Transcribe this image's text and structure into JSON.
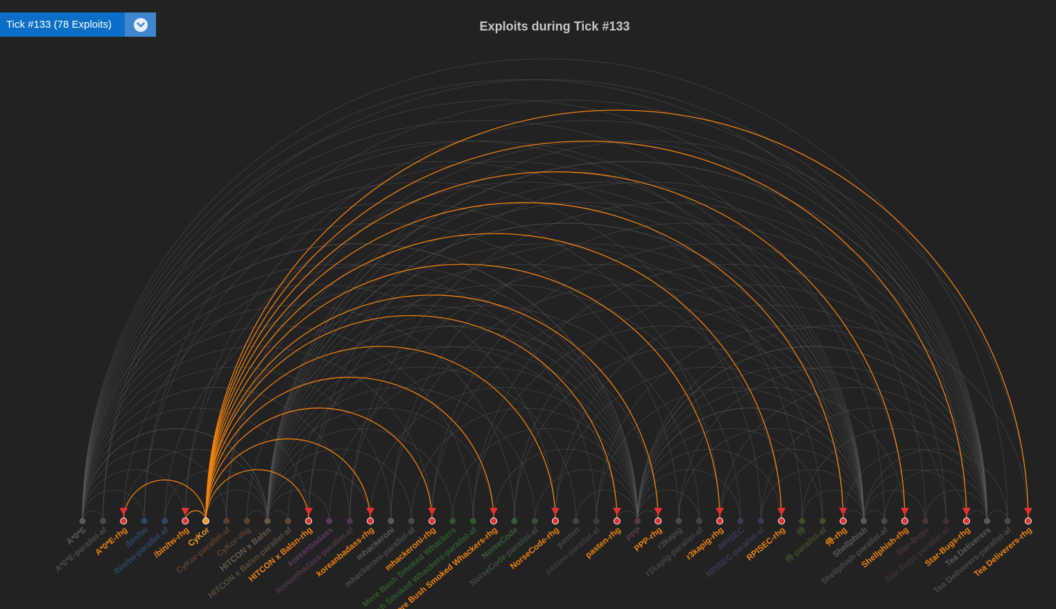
{
  "selector": {
    "label": "Tick #133 (78 Exploits)",
    "caret_icon": "chevron-down-icon"
  },
  "chart_data": {
    "type": "arc-diagram",
    "title": "Exploits during Tick #133",
    "highlighted_attacker": "CyKor",
    "colors": {
      "background": "#222222",
      "exploit_arc": "#f0820f",
      "other_arc": "#5a5a5a",
      "target_marker": "#e03030",
      "attacker_node": "#f39a22",
      "idle_node": "#444444"
    },
    "nodes": [
      {
        "label": "A*0*E",
        "state": "idle",
        "color": "#5a5a5a"
      },
      {
        "label": "A*0*E-parallel-af",
        "state": "idle",
        "color": "#4a4a4a"
      },
      {
        "label": "A*0*E-rhg",
        "state": "target",
        "color": "#f0820f"
      },
      {
        "label": "/bin/tw",
        "state": "idle",
        "color": "#2f4766"
      },
      {
        "label": "/bin/tw-parallel-af",
        "state": "idle",
        "color": "#2f4766"
      },
      {
        "label": "/bin/tw-rhg",
        "state": "target",
        "color": "#f0820f"
      },
      {
        "label": "CyKor",
        "state": "attacker",
        "color": "#f39a22"
      },
      {
        "label": "CyKor-parallel-af",
        "state": "idle",
        "color": "#5a4130"
      },
      {
        "label": "CyKor-rhg",
        "state": "idle",
        "color": "#5a4130"
      },
      {
        "label": "HITCON x Balsn",
        "state": "idle",
        "color": "#6a5a4a"
      },
      {
        "label": "HITCON x Balsn-parallel-af",
        "state": "idle",
        "color": "#5a4a3a"
      },
      {
        "label": "HITCON x Balsn-rhg",
        "state": "target",
        "color": "#f0820f"
      },
      {
        "label": "koreanbadass",
        "state": "idle",
        "color": "#5a3a5a"
      },
      {
        "label": "koreanbadass-parallel-af",
        "state": "idle",
        "color": "#4e354e"
      },
      {
        "label": "koreanbadass-rhg",
        "state": "target",
        "color": "#f0820f"
      },
      {
        "label": "mhackeroni",
        "state": "idle",
        "color": "#5a5a5a"
      },
      {
        "label": "mhackeroni-parallel-af",
        "state": "idle",
        "color": "#4a4a4a"
      },
      {
        "label": "mhackeroni-rhg",
        "state": "target",
        "color": "#f0820f"
      },
      {
        "label": "More Bush Smoked Whackers",
        "state": "idle",
        "color": "#2f5a2f"
      },
      {
        "label": "More Bush Smoked Whackers-parallel-af",
        "state": "idle",
        "color": "#2f5a2f"
      },
      {
        "label": "More Bush Smoked Whackers-rhg",
        "state": "target",
        "color": "#f0820f"
      },
      {
        "label": "NorseCode",
        "state": "idle",
        "color": "#3a5a3a"
      },
      {
        "label": "NorseCode-parallel-af",
        "state": "idle",
        "color": "#3a4f3a"
      },
      {
        "label": "NorseCode-rhg",
        "state": "target",
        "color": "#f0820f"
      },
      {
        "label": "pasten",
        "state": "idle",
        "color": "#444444"
      },
      {
        "label": "pasten-parallel-af",
        "state": "idle",
        "color": "#3c3c3c"
      },
      {
        "label": "pasten-rhg",
        "state": "target",
        "color": "#f0820f"
      },
      {
        "label": "PPP",
        "state": "idle",
        "color": "#5a3a4a"
      },
      {
        "label": "PPP-rhg",
        "state": "target",
        "color": "#f0820f"
      },
      {
        "label": "r3kapig",
        "state": "idle",
        "color": "#4a4a4a"
      },
      {
        "label": "r3kapig-parallel-af",
        "state": "idle",
        "color": "#444444"
      },
      {
        "label": "r3kapig-rhg",
        "state": "target",
        "color": "#f0820f"
      },
      {
        "label": "RPISEC",
        "state": "idle",
        "color": "#3a3a55"
      },
      {
        "label": "RPISEC-parallel-af",
        "state": "idle",
        "color": "#3a3a55"
      },
      {
        "label": "RPISEC-rhg",
        "state": "target",
        "color": "#f0820f"
      },
      {
        "label": "侍",
        "state": "idle",
        "color": "#3f4f2a"
      },
      {
        "label": "侍-parallel-af",
        "state": "idle",
        "color": "#3f4f2a"
      },
      {
        "label": "侍-rhg",
        "state": "target",
        "color": "#f0820f"
      },
      {
        "label": "Shellphish",
        "state": "idle",
        "color": "#5a5a5a"
      },
      {
        "label": "Shellphish-parallel-af",
        "state": "idle",
        "color": "#4a4a4a"
      },
      {
        "label": "Shellphish-rhg",
        "state": "target",
        "color": "#f0820f"
      },
      {
        "label": "Star-Bugs",
        "state": "idle",
        "color": "#4a3535"
      },
      {
        "label": "Star-Bugs-parallel-af",
        "state": "idle",
        "color": "#3f3030"
      },
      {
        "label": "Star-Bugs-rhg",
        "state": "target",
        "color": "#f0820f"
      },
      {
        "label": "Tea Deliverers",
        "state": "idle",
        "color": "#5a5a5a"
      },
      {
        "label": "Tea Deliverers-parallel-af",
        "state": "idle",
        "color": "#4a4a4a"
      },
      {
        "label": "Tea Deliverers-rhg",
        "state": "target",
        "color": "#f0820f"
      }
    ],
    "exploits": [
      {
        "from": "CyKor",
        "to": "A*0*E-rhg"
      },
      {
        "from": "CyKor",
        "to": "/bin/tw-rhg"
      },
      {
        "from": "CyKor",
        "to": "HITCON x Balsn-rhg"
      },
      {
        "from": "CyKor",
        "to": "koreanbadass-rhg"
      },
      {
        "from": "CyKor",
        "to": "mhackeroni-rhg"
      },
      {
        "from": "CyKor",
        "to": "More Bush Smoked Whackers-rhg"
      },
      {
        "from": "CyKor",
        "to": "NorseCode-rhg"
      },
      {
        "from": "CyKor",
        "to": "pasten-rhg"
      },
      {
        "from": "CyKor",
        "to": "PPP-rhg"
      },
      {
        "from": "CyKor",
        "to": "r3kapig-rhg"
      },
      {
        "from": "CyKor",
        "to": "RPISEC-rhg"
      },
      {
        "from": "CyKor",
        "to": "侍-rhg"
      },
      {
        "from": "CyKor",
        "to": "Shellphish-rhg"
      },
      {
        "from": "CyKor",
        "to": "Star-Bugs-rhg"
      },
      {
        "from": "CyKor",
        "to": "Tea Deliverers-rhg"
      }
    ],
    "background_hubs": [
      "A*0*E",
      "HITCON x Balsn",
      "PPP",
      "Shellphish",
      "Tea Deliverers"
    ]
  }
}
